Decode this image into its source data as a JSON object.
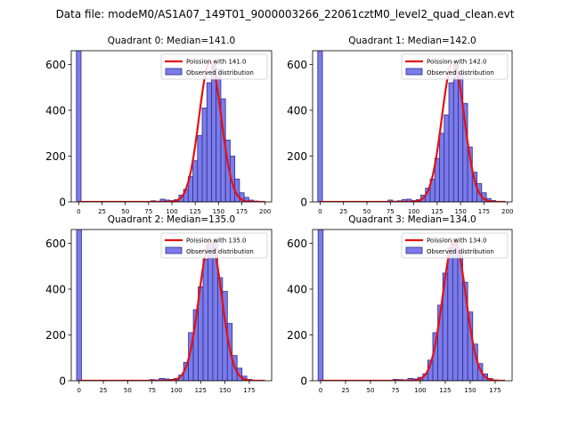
{
  "figure": {
    "suptitle": "Data file: modeM0/AS1A07_149T01_9000003266_22061cztM0_level2_quad_clean.evt"
  },
  "legend_labels": {
    "observed": "Observed distribution"
  },
  "colors": {
    "bar_fill": "#7b7bea",
    "bar_edge": "#2e2e8e",
    "poisson_line": "#e61010"
  },
  "chart_data": [
    {
      "type": "bar",
      "title": "Quadrant 0: Median=141.0",
      "poisson_label": "Poission with 141.0",
      "median": 141.0,
      "bin_width": 5,
      "xlim": [
        -8,
        207
      ],
      "ylim": [
        0,
        660
      ],
      "xticks": [
        0,
        25,
        50,
        75,
        100,
        125,
        150,
        175,
        200
      ],
      "yticks": [
        0,
        200,
        400,
        600
      ],
      "curve_peak": 612,
      "bins": [
        {
          "x": 0,
          "count": 660
        },
        {
          "x": 80,
          "count": 5
        },
        {
          "x": 85,
          "count": 3
        },
        {
          "x": 90,
          "count": 12
        },
        {
          "x": 95,
          "count": 8
        },
        {
          "x": 100,
          "count": 6
        },
        {
          "x": 105,
          "count": 10
        },
        {
          "x": 110,
          "count": 30
        },
        {
          "x": 115,
          "count": 55
        },
        {
          "x": 120,
          "count": 110
        },
        {
          "x": 125,
          "count": 180
        },
        {
          "x": 130,
          "count": 290
        },
        {
          "x": 135,
          "count": 410
        },
        {
          "x": 140,
          "count": 520
        },
        {
          "x": 145,
          "count": 600
        },
        {
          "x": 150,
          "count": 580
        },
        {
          "x": 155,
          "count": 450
        },
        {
          "x": 160,
          "count": 270
        },
        {
          "x": 165,
          "count": 200
        },
        {
          "x": 170,
          "count": 100
        },
        {
          "x": 175,
          "count": 40
        },
        {
          "x": 180,
          "count": 20
        },
        {
          "x": 185,
          "count": 8
        },
        {
          "x": 190,
          "count": 4
        },
        {
          "x": 195,
          "count": 2
        }
      ]
    },
    {
      "type": "bar",
      "title": "Quadrant 1: Median=142.0",
      "poisson_label": "Poission with 142.0",
      "median": 142.0,
      "bin_width": 5,
      "xlim": [
        -8,
        205
      ],
      "ylim": [
        0,
        660
      ],
      "xticks": [
        0,
        25,
        50,
        75,
        100,
        125,
        150,
        175,
        200
      ],
      "yticks": [
        0,
        200,
        400,
        600
      ],
      "curve_peak": 612,
      "bins": [
        {
          "x": 0,
          "count": 660
        },
        {
          "x": 75,
          "count": 8
        },
        {
          "x": 80,
          "count": 3
        },
        {
          "x": 85,
          "count": 5
        },
        {
          "x": 90,
          "count": 10
        },
        {
          "x": 95,
          "count": 12
        },
        {
          "x": 100,
          "count": 6
        },
        {
          "x": 105,
          "count": 10
        },
        {
          "x": 110,
          "count": 30
        },
        {
          "x": 115,
          "count": 60
        },
        {
          "x": 120,
          "count": 100
        },
        {
          "x": 125,
          "count": 190
        },
        {
          "x": 130,
          "count": 300
        },
        {
          "x": 135,
          "count": 380
        },
        {
          "x": 140,
          "count": 520
        },
        {
          "x": 145,
          "count": 600
        },
        {
          "x": 150,
          "count": 560
        },
        {
          "x": 155,
          "count": 430
        },
        {
          "x": 160,
          "count": 240
        },
        {
          "x": 165,
          "count": 130
        },
        {
          "x": 170,
          "count": 80
        },
        {
          "x": 175,
          "count": 40
        },
        {
          "x": 180,
          "count": 15
        },
        {
          "x": 185,
          "count": 6
        },
        {
          "x": 190,
          "count": 2
        }
      ]
    },
    {
      "type": "bar",
      "title": "Quadrant 2: Median=135.0",
      "poisson_label": "Poission with 135.0",
      "median": 135.0,
      "bin_width": 5,
      "xlim": [
        -8,
        198
      ],
      "ylim": [
        0,
        660
      ],
      "xticks": [
        0,
        25,
        50,
        75,
        100,
        125,
        150,
        175
      ],
      "yticks": [
        0,
        200,
        400,
        600
      ],
      "curve_peak": 612,
      "bins": [
        {
          "x": 0,
          "count": 660
        },
        {
          "x": 75,
          "count": 5
        },
        {
          "x": 80,
          "count": 4
        },
        {
          "x": 85,
          "count": 10
        },
        {
          "x": 90,
          "count": 8
        },
        {
          "x": 95,
          "count": 6
        },
        {
          "x": 100,
          "count": 10
        },
        {
          "x": 105,
          "count": 25
        },
        {
          "x": 110,
          "count": 80
        },
        {
          "x": 115,
          "count": 210
        },
        {
          "x": 120,
          "count": 310
        },
        {
          "x": 125,
          "count": 410
        },
        {
          "x": 130,
          "count": 530
        },
        {
          "x": 135,
          "count": 600
        },
        {
          "x": 140,
          "count": 610
        },
        {
          "x": 145,
          "count": 450
        },
        {
          "x": 150,
          "count": 390
        },
        {
          "x": 155,
          "count": 250
        },
        {
          "x": 160,
          "count": 110
        },
        {
          "x": 165,
          "count": 55
        },
        {
          "x": 170,
          "count": 20
        },
        {
          "x": 175,
          "count": 6
        },
        {
          "x": 180,
          "count": 2
        }
      ]
    },
    {
      "type": "bar",
      "title": "Quadrant 3: Median=134.0",
      "poisson_label": "Poission with 134.0",
      "median": 134.0,
      "bin_width": 5,
      "xlim": [
        -8,
        192
      ],
      "ylim": [
        0,
        660
      ],
      "xticks": [
        0,
        25,
        50,
        75,
        100,
        125,
        150,
        175
      ],
      "yticks": [
        0,
        200,
        400,
        600
      ],
      "curve_peak": 612,
      "bins": [
        {
          "x": 0,
          "count": 660
        },
        {
          "x": 75,
          "count": 6
        },
        {
          "x": 80,
          "count": 5
        },
        {
          "x": 85,
          "count": 4
        },
        {
          "x": 90,
          "count": 10
        },
        {
          "x": 95,
          "count": 8
        },
        {
          "x": 100,
          "count": 15
        },
        {
          "x": 105,
          "count": 30
        },
        {
          "x": 110,
          "count": 90
        },
        {
          "x": 115,
          "count": 210
        },
        {
          "x": 120,
          "count": 330
        },
        {
          "x": 125,
          "count": 470
        },
        {
          "x": 130,
          "count": 580
        },
        {
          "x": 135,
          "count": 620
        },
        {
          "x": 140,
          "count": 560
        },
        {
          "x": 145,
          "count": 430
        },
        {
          "x": 150,
          "count": 300
        },
        {
          "x": 155,
          "count": 160
        },
        {
          "x": 160,
          "count": 75
        },
        {
          "x": 165,
          "count": 30
        },
        {
          "x": 170,
          "count": 10
        },
        {
          "x": 175,
          "count": 3
        }
      ]
    }
  ]
}
